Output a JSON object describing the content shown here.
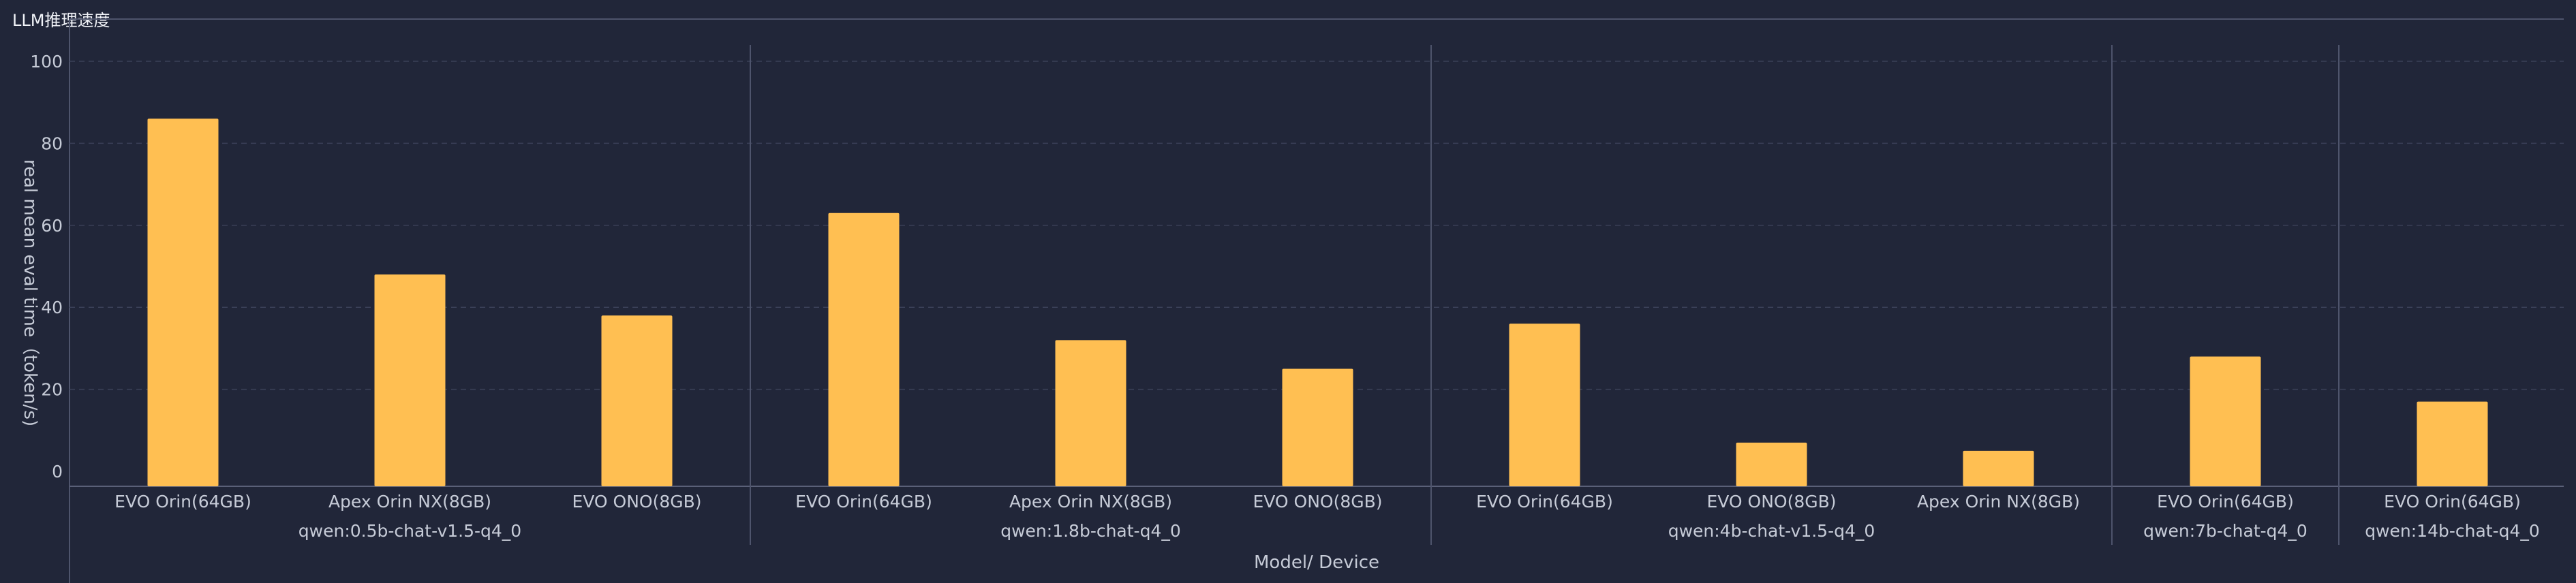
{
  "panel": {
    "title": "LLM推理速度"
  },
  "colors": {
    "bar": "#ffbf52",
    "background": "#212639",
    "grid": "#3a4058",
    "separator": "#4e546c",
    "axis": "#5a6078"
  },
  "chart_data": {
    "type": "bar",
    "title": "LLM推理速度",
    "xlabel": "Model/ Device",
    "ylabel": "real mean eval time（token/s)",
    "ylim": [
      0,
      100
    ],
    "yticks": [
      0,
      20,
      40,
      60,
      80,
      100
    ],
    "grid": true,
    "groups": [
      {
        "name": "qwen:0.5b-chat-v1.5-q4_0",
        "bars": [
          {
            "device": "EVO Orin(64GB)",
            "value": 86
          },
          {
            "device": "Apex Orin NX(8GB)",
            "value": 48
          },
          {
            "device": "EVO ONO(8GB)",
            "value": 38
          }
        ]
      },
      {
        "name": "qwen:1.8b-chat-q4_0",
        "bars": [
          {
            "device": "EVO Orin(64GB)",
            "value": 63
          },
          {
            "device": "Apex Orin NX(8GB)",
            "value": 32
          },
          {
            "device": "EVO ONO(8GB)",
            "value": 25
          }
        ]
      },
      {
        "name": "qwen:4b-chat-v1.5-q4_0",
        "bars": [
          {
            "device": "EVO Orin(64GB)",
            "value": 36
          },
          {
            "device": "EVO ONO(8GB)",
            "value": 7
          },
          {
            "device": "Apex Orin NX(8GB)",
            "value": 5
          }
        ]
      },
      {
        "name": "qwen:7b-chat-q4_0",
        "bars": [
          {
            "device": "EVO Orin(64GB)",
            "value": 28
          }
        ]
      },
      {
        "name": "qwen:14b-chat-q4_0",
        "bars": [
          {
            "device": "EVO Orin(64GB)",
            "value": 17
          }
        ]
      }
    ]
  }
}
